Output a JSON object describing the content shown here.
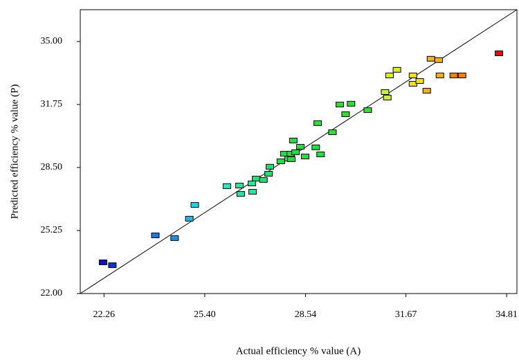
{
  "chart_data": {
    "type": "scatter",
    "x_label": "Actual efficiency % value (A)",
    "y_label": "Predicted efficiency % value (P)",
    "xlim": [
      21.52,
      35.13
    ],
    "ylim": [
      22,
      36.64
    ],
    "xticks": [
      22.26,
      {
        "value": 25.4,
        "label": "25.40"
      },
      28.54,
      31.67,
      34.81
    ],
    "yticks": [
      {
        "value": 22,
        "label": "22.00"
      },
      25.25,
      {
        "value": 28.5,
        "label": "28.50"
      },
      31.75,
      {
        "value": 35,
        "label": "35.00"
      }
    ],
    "x": [
      22.23,
      22.52,
      23.86,
      24.46,
      24.92,
      25.09,
      26.09,
      26.48,
      26.52,
      26.89,
      26.87,
      27.0,
      27.23,
      27.39,
      27.43,
      27.77,
      27.88,
      28.01,
      28.1,
      28.08,
      28.23,
      28.38,
      28.16,
      28.53,
      28.86,
      29.01,
      28.92,
      29.38,
      29.61,
      29.79,
      29.96,
      30.48,
      31.02,
      31.09,
      31.16,
      31.39,
      31.89,
      31.89,
      32.1,
      32.32,
      32.45,
      32.69,
      32.73,
      33.16,
      33.42,
      34.57
    ],
    "values": [
      23.61,
      23.46,
      25.0,
      24.86,
      25.86,
      26.57,
      27.54,
      27.57,
      27.14,
      27.25,
      27.68,
      27.93,
      27.86,
      28.18,
      28.54,
      28.82,
      29.21,
      28.96,
      28.93,
      29.21,
      29.29,
      29.57,
      29.89,
      29.07,
      29.54,
      29.18,
      30.79,
      30.32,
      31.75,
      31.25,
      31.79,
      31.46,
      32.39,
      32.11,
      33.25,
      33.54,
      33.25,
      32.82,
      32.96,
      32.46,
      34.11,
      34.04,
      33.25,
      33.25,
      33.25,
      34.39
    ],
    "colors": [
      "#1010c0",
      "#1030d8",
      "#1878e8",
      "#1890e8",
      "#20b8e8",
      "#10d8f0",
      "#20f0c0",
      "#20e8a0",
      "#20e8a0",
      "#20e8a0",
      "#20e8a0",
      "#20e070",
      "#20e070",
      "#20e070",
      "#20e070",
      "#20e040",
      "#20e040",
      "#20e040",
      "#20e040",
      "#20e040",
      "#20e040",
      "#20e040",
      "#20e040",
      "#20e040",
      "#20e040",
      "#20e040",
      "#30e030",
      "#30e030",
      "#30e030",
      "#30e030",
      "#30e030",
      "#30e030",
      "#c8f040",
      "#c8f040",
      "#d8f020",
      "#d8f020",
      "#f0e020",
      "#f0e020",
      "#f0e020",
      "#f0b020",
      "#f0b020",
      "#f0b020",
      "#f0b020",
      "#f08010",
      "#f08010",
      "#e01010"
    ]
  }
}
